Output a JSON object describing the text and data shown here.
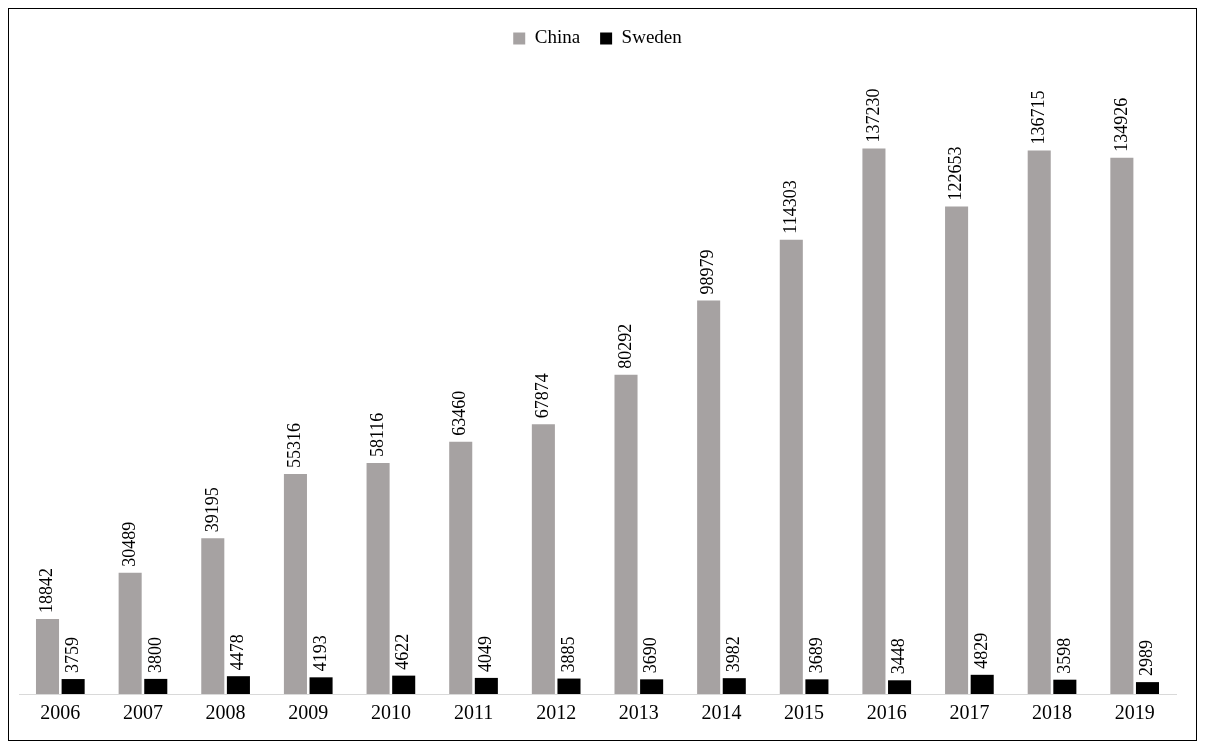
{
  "chart_data": {
    "type": "bar",
    "categories": [
      "2006",
      "2007",
      "2008",
      "2009",
      "2010",
      "2011",
      "2012",
      "2013",
      "2014",
      "2015",
      "2016",
      "2017",
      "2018",
      "2019"
    ],
    "series": [
      {
        "name": "China",
        "color": "#a6a2a2",
        "values": [
          18842,
          30489,
          39195,
          55316,
          58116,
          63460,
          67874,
          80292,
          98979,
          114303,
          137230,
          122653,
          136715,
          134926
        ]
      },
      {
        "name": "Sweden",
        "color": "#000000",
        "values": [
          3759,
          3800,
          4478,
          4193,
          4622,
          4049,
          3885,
          3690,
          3982,
          3689,
          3448,
          4829,
          3598,
          2989
        ]
      }
    ],
    "data_labels": true,
    "legend": "top",
    "grid": false
  }
}
